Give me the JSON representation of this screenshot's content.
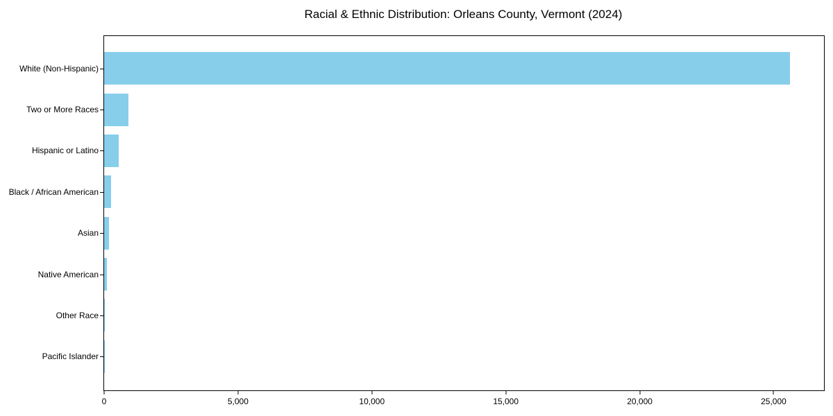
{
  "title": "Racial & Ethnic Distribution: Orleans County, Vermont (2024)",
  "colors": {
    "bar": "#87CEEB",
    "axis": "#000000",
    "background": "#ffffff"
  },
  "chart_data": {
    "type": "bar",
    "orientation": "horizontal",
    "title": "Racial & Ethnic Distribution: Orleans County, Vermont (2024)",
    "categories": [
      "White (Non-Hispanic)",
      "Two or More Races",
      "Hispanic or Latino",
      "Black / African American",
      "Asian",
      "Native American",
      "Other Race",
      "Pacific Islander"
    ],
    "values": [
      25600,
      920,
      540,
      250,
      175,
      110,
      25,
      5
    ],
    "xlabel": "",
    "ylabel": "",
    "xlim": [
      0,
      26880
    ],
    "xticks": [
      0,
      5000,
      10000,
      15000,
      20000,
      25000
    ],
    "xtick_labels": [
      "0",
      "5,000",
      "10,000",
      "15,000",
      "20,000",
      "25,000"
    ],
    "bar_color": "#87CEEB",
    "grid": false,
    "legend": null
  }
}
